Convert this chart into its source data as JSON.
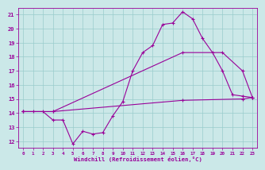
{
  "xlabel": "Windchill (Refroidissement éolien,°C)",
  "background_color": "#cbe8e8",
  "grid_color": "#99cccc",
  "line_color": "#990099",
  "xlim": [
    -0.5,
    23.5
  ],
  "ylim": [
    11.5,
    21.5
  ],
  "xticks": [
    0,
    1,
    2,
    3,
    4,
    5,
    6,
    7,
    8,
    9,
    10,
    11,
    12,
    13,
    14,
    15,
    16,
    17,
    18,
    19,
    20,
    21,
    22,
    23
  ],
  "yticks": [
    12,
    13,
    14,
    15,
    16,
    17,
    18,
    19,
    20,
    21
  ],
  "curve1_x": [
    0,
    1,
    2,
    3,
    4,
    5,
    6,
    7,
    8,
    9,
    10,
    11,
    12,
    13,
    14,
    15,
    16,
    17,
    18,
    19,
    20,
    21,
    22,
    23
  ],
  "curve1_y": [
    14.1,
    14.1,
    14.1,
    13.5,
    13.5,
    11.8,
    12.7,
    12.5,
    12.6,
    13.8,
    14.8,
    17.0,
    18.3,
    18.8,
    20.3,
    20.4,
    21.2,
    20.7,
    19.3,
    18.3,
    17.0,
    15.3,
    15.2,
    15.1
  ],
  "curve2_x": [
    0,
    3,
    16,
    20,
    22,
    23
  ],
  "curve2_y": [
    14.1,
    14.1,
    18.3,
    18.3,
    17.0,
    15.1
  ],
  "curve3_x": [
    0,
    3,
    16,
    22,
    23
  ],
  "curve3_y": [
    14.1,
    14.1,
    14.9,
    15.0,
    15.1
  ]
}
